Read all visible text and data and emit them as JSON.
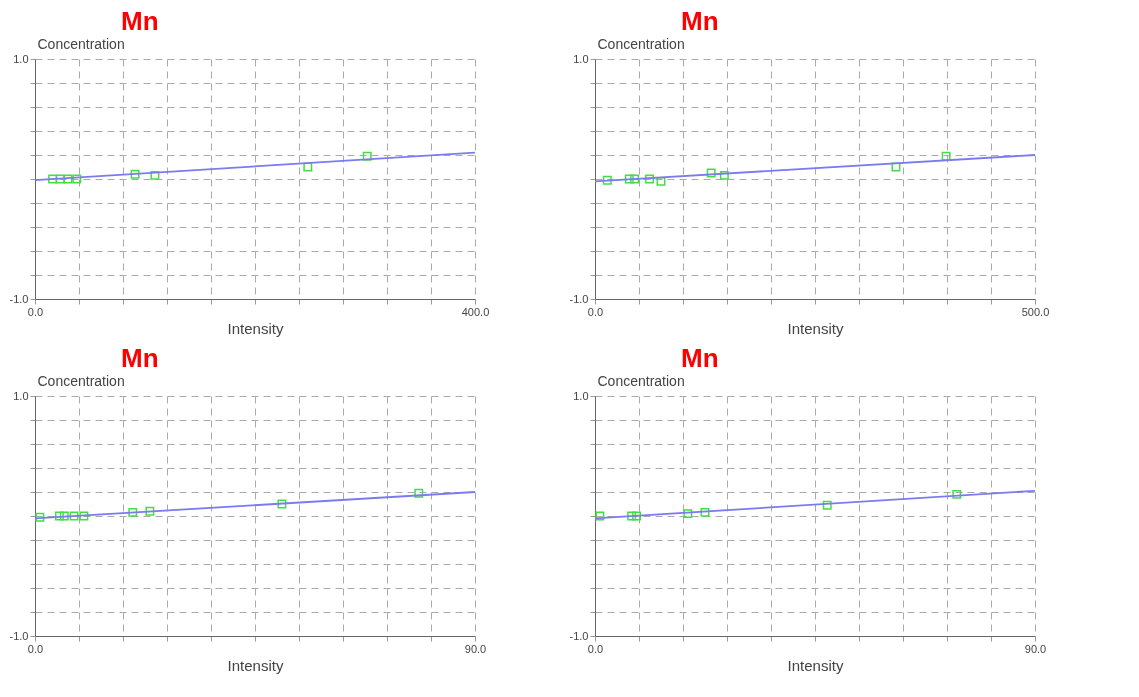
{
  "chart_data": [
    {
      "type": "scatter",
      "title": "Mn",
      "xlabel": "Intensity",
      "ylabel": "Concentration",
      "xlim": [
        0,
        400
      ],
      "ylim": [
        -1,
        1
      ],
      "grid": true,
      "marker": "square",
      "xticks": [
        {
          "value": 0,
          "label": "0.0"
        },
        {
          "value": 40,
          "label": null
        },
        {
          "value": 80,
          "label": null
        },
        {
          "value": 120,
          "label": null
        },
        {
          "value": 160,
          "label": null
        },
        {
          "value": 200,
          "label": null
        },
        {
          "value": 240,
          "label": null
        },
        {
          "value": 280,
          "label": null
        },
        {
          "value": 320,
          "label": null
        },
        {
          "value": 360,
          "label": null
        },
        {
          "value": 400,
          "label": "400.0"
        }
      ],
      "yticks": [
        {
          "value": -1,
          "label": "-1.0"
        },
        {
          "value": -0.8,
          "label": null
        },
        {
          "value": -0.6,
          "label": null
        },
        {
          "value": -0.4,
          "label": null
        },
        {
          "value": -0.2,
          "label": null
        },
        {
          "value": 0,
          "label": null
        },
        {
          "value": 0.2,
          "label": null
        },
        {
          "value": 0.4,
          "label": null
        },
        {
          "value": 0.6,
          "label": null
        },
        {
          "value": 0.8,
          "label": null
        },
        {
          "value": 1,
          "label": "1.0"
        }
      ],
      "series": [
        {
          "type": "scatter",
          "color": "#44dd44",
          "x": [
            16,
            23,
            30,
            38,
            91,
            109,
            248,
            302
          ],
          "values": [
            0.0,
            0.0,
            0.0,
            0.0,
            0.04,
            0.03,
            0.1,
            0.19
          ]
        },
        {
          "type": "line",
          "color": "#7b7bf0",
          "marker": "none",
          "x": [
            0,
            400
          ],
          "values": [
            -0.01,
            0.22
          ]
        }
      ]
    },
    {
      "type": "scatter",
      "title": "Mn",
      "xlabel": "Intensity",
      "ylabel": "Concentration",
      "xlim": [
        0,
        500
      ],
      "ylim": [
        -1,
        1
      ],
      "grid": true,
      "marker": "square",
      "xticks": [
        {
          "value": 0,
          "label": "0.0"
        },
        {
          "value": 50,
          "label": null
        },
        {
          "value": 100,
          "label": null
        },
        {
          "value": 150,
          "label": null
        },
        {
          "value": 200,
          "label": null
        },
        {
          "value": 250,
          "label": null
        },
        {
          "value": 300,
          "label": null
        },
        {
          "value": 350,
          "label": null
        },
        {
          "value": 400,
          "label": null
        },
        {
          "value": 450,
          "label": null
        },
        {
          "value": 500,
          "label": "500.0"
        }
      ],
      "yticks": [
        {
          "value": -1,
          "label": "-1.0"
        },
        {
          "value": -0.8,
          "label": null
        },
        {
          "value": -0.6,
          "label": null
        },
        {
          "value": -0.4,
          "label": null
        },
        {
          "value": -0.2,
          "label": null
        },
        {
          "value": 0,
          "label": null
        },
        {
          "value": 0.2,
          "label": null
        },
        {
          "value": 0.4,
          "label": null
        },
        {
          "value": 0.6,
          "label": null
        },
        {
          "value": 0.8,
          "label": null
        },
        {
          "value": 1,
          "label": "1.0"
        }
      ],
      "series": [
        {
          "type": "scatter",
          "color": "#44dd44",
          "x": [
            14,
            39,
            45,
            62,
            75,
            132,
            147,
            342,
            399
          ],
          "values": [
            -0.01,
            0.0,
            0.0,
            0.0,
            -0.02,
            0.05,
            0.03,
            0.1,
            0.19
          ]
        },
        {
          "type": "line",
          "color": "#7b7bf0",
          "marker": "none",
          "x": [
            0,
            500
          ],
          "values": [
            -0.02,
            0.2
          ]
        }
      ]
    },
    {
      "type": "scatter",
      "title": "Mn",
      "xlabel": "Intensity",
      "ylabel": "Concentration",
      "xlim": [
        0,
        90
      ],
      "ylim": [
        -1,
        1
      ],
      "grid": true,
      "marker": "square",
      "xticks": [
        {
          "value": 0,
          "label": "0.0"
        },
        {
          "value": 9,
          "label": null
        },
        {
          "value": 18,
          "label": null
        },
        {
          "value": 27,
          "label": null
        },
        {
          "value": 36,
          "label": null
        },
        {
          "value": 45,
          "label": null
        },
        {
          "value": 54,
          "label": null
        },
        {
          "value": 63,
          "label": null
        },
        {
          "value": 72,
          "label": null
        },
        {
          "value": 81,
          "label": null
        },
        {
          "value": 90,
          "label": "90.0"
        }
      ],
      "yticks": [
        {
          "value": -1,
          "label": "-1.0"
        },
        {
          "value": -0.8,
          "label": null
        },
        {
          "value": -0.6,
          "label": null
        },
        {
          "value": -0.4,
          "label": null
        },
        {
          "value": -0.2,
          "label": null
        },
        {
          "value": 0,
          "label": null
        },
        {
          "value": 0.2,
          "label": null
        },
        {
          "value": 0.4,
          "label": null
        },
        {
          "value": 0.6,
          "label": null
        },
        {
          "value": 0.8,
          "label": null
        },
        {
          "value": 1,
          "label": "1.0"
        }
      ],
      "series": [
        {
          "type": "scatter",
          "color": "#44dd44",
          "x": [
            1,
            5,
            6,
            8,
            10,
            20,
            23.5,
            50.5,
            78.5
          ],
          "values": [
            -0.01,
            0.0,
            0.0,
            0.0,
            0.0,
            0.03,
            0.04,
            0.1,
            0.19
          ]
        },
        {
          "type": "line",
          "color": "#7b7bf0",
          "marker": "none",
          "x": [
            0,
            90
          ],
          "values": [
            -0.02,
            0.2
          ]
        }
      ]
    },
    {
      "type": "scatter",
      "title": "Mn",
      "xlabel": "Intensity",
      "ylabel": "Concentration",
      "xlim": [
        0,
        90
      ],
      "ylim": [
        -1,
        1
      ],
      "grid": true,
      "marker": "square",
      "xticks": [
        {
          "value": 0,
          "label": "0.0"
        },
        {
          "value": 9,
          "label": null
        },
        {
          "value": 18,
          "label": null
        },
        {
          "value": 27,
          "label": null
        },
        {
          "value": 36,
          "label": null
        },
        {
          "value": 45,
          "label": null
        },
        {
          "value": 54,
          "label": null
        },
        {
          "value": 63,
          "label": null
        },
        {
          "value": 72,
          "label": null
        },
        {
          "value": 81,
          "label": null
        },
        {
          "value": 90,
          "label": "90.0"
        }
      ],
      "yticks": [
        {
          "value": -1,
          "label": "-1.0"
        },
        {
          "value": -0.8,
          "label": null
        },
        {
          "value": -0.6,
          "label": null
        },
        {
          "value": -0.4,
          "label": null
        },
        {
          "value": -0.2,
          "label": null
        },
        {
          "value": 0,
          "label": null
        },
        {
          "value": 0.2,
          "label": null
        },
        {
          "value": 0.4,
          "label": null
        },
        {
          "value": 0.6,
          "label": null
        },
        {
          "value": 0.8,
          "label": null
        },
        {
          "value": 1,
          "label": "1.0"
        }
      ],
      "series": [
        {
          "type": "scatter",
          "color": "#44dd44",
          "x": [
            1,
            7.5,
            8.5,
            19,
            22.5,
            47.5,
            74
          ],
          "values": [
            0.0,
            0.0,
            0.0,
            0.02,
            0.03,
            0.09,
            0.18
          ]
        },
        {
          "type": "line",
          "color": "#7b7bf0",
          "marker": "none",
          "x": [
            0,
            90
          ],
          "values": [
            -0.02,
            0.21
          ]
        }
      ]
    }
  ]
}
